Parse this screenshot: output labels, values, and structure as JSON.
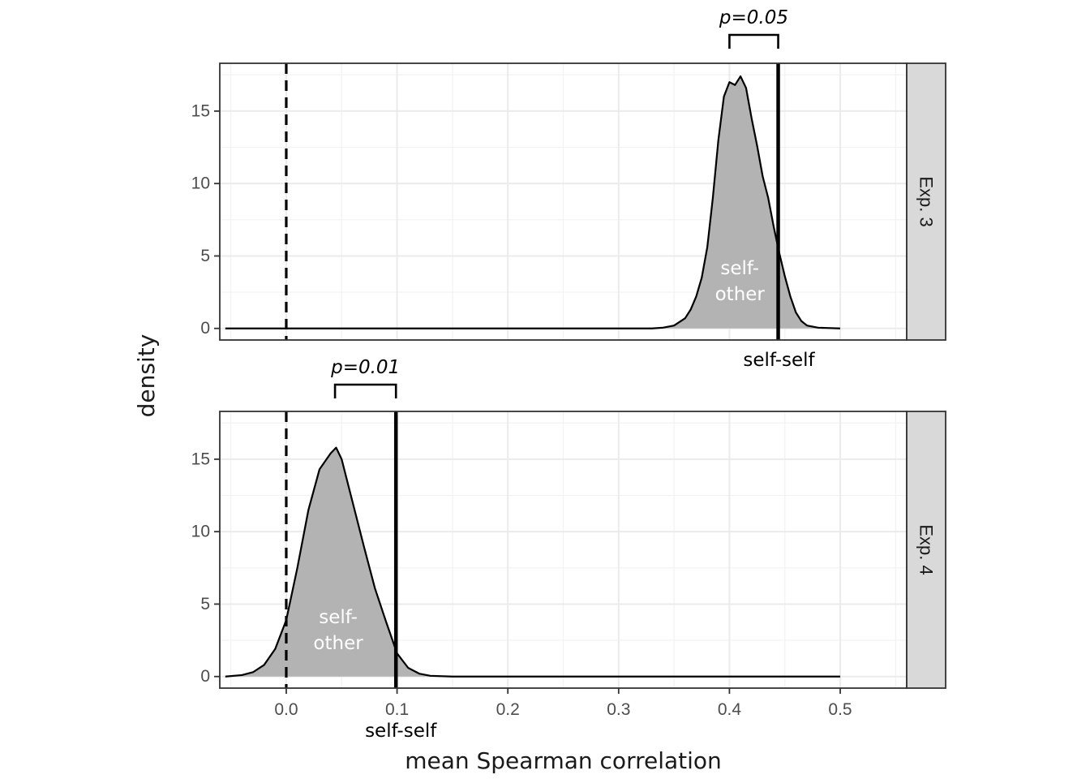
{
  "chart_data": {
    "type": "area",
    "xlabel": "mean Spearman correlation",
    "ylabel": "density",
    "xlim": [
      -0.06,
      0.56
    ],
    "ylim": [
      -0.8,
      18.3
    ],
    "x_ticks": [
      0.0,
      0.1,
      0.2,
      0.3,
      0.4,
      0.5
    ],
    "x_tick_labels": [
      "0.0",
      "0.1",
      "0.2",
      "0.3",
      "0.4",
      "0.5"
    ],
    "y_ticks": [
      0,
      5,
      10,
      15
    ],
    "y_tick_labels": [
      "0",
      "5",
      "10",
      "15"
    ],
    "grid": true,
    "fill_color": "#b3b3b3",
    "panels": [
      {
        "strip_label": "Exp. 3",
        "reference_x": 0.0,
        "self_self_x": 0.444,
        "self_self_label": "self-self",
        "distribution_label_1": "self-",
        "distribution_label_2": "other",
        "distribution_label_x": 0.405,
        "bracket": {
          "x_from": 0.4,
          "x_to": 0.444,
          "label": "p=0.05"
        },
        "density": {
          "x": [
            -0.055,
            0.33,
            0.34,
            0.35,
            0.36,
            0.365,
            0.37,
            0.375,
            0.38,
            0.385,
            0.39,
            0.395,
            0.4,
            0.405,
            0.41,
            0.415,
            0.42,
            0.425,
            0.43,
            0.435,
            0.44,
            0.445,
            0.45,
            0.455,
            0.46,
            0.465,
            0.47,
            0.48,
            0.5
          ],
          "y": [
            0,
            0,
            0.05,
            0.2,
            0.7,
            1.3,
            2.2,
            3.5,
            5.6,
            9.0,
            13.0,
            16.0,
            17.0,
            16.8,
            17.4,
            16.6,
            14.5,
            12.6,
            10.5,
            9.0,
            7.0,
            5.2,
            3.6,
            2.2,
            1.1,
            0.5,
            0.2,
            0.05,
            0
          ]
        }
      },
      {
        "strip_label": "Exp. 4",
        "reference_x": 0.0,
        "self_self_x": 0.099,
        "self_self_label": "self-self",
        "distribution_label_1": "self-",
        "distribution_label_2": "other",
        "distribution_label_x": 0.044,
        "bracket": {
          "x_from": 0.044,
          "x_to": 0.099,
          "label": "p=0.01"
        },
        "density": {
          "x": [
            -0.055,
            -0.04,
            -0.03,
            -0.02,
            -0.01,
            0.0,
            0.01,
            0.02,
            0.03,
            0.04,
            0.045,
            0.05,
            0.06,
            0.07,
            0.08,
            0.09,
            0.1,
            0.11,
            0.12,
            0.13,
            0.15,
            0.2,
            0.5
          ],
          "y": [
            0,
            0.1,
            0.3,
            0.8,
            1.9,
            3.9,
            7.5,
            11.5,
            14.3,
            15.4,
            15.8,
            15.0,
            12.0,
            9.0,
            6.1,
            3.8,
            1.6,
            0.6,
            0.2,
            0.05,
            0,
            0,
            0
          ]
        }
      }
    ]
  }
}
